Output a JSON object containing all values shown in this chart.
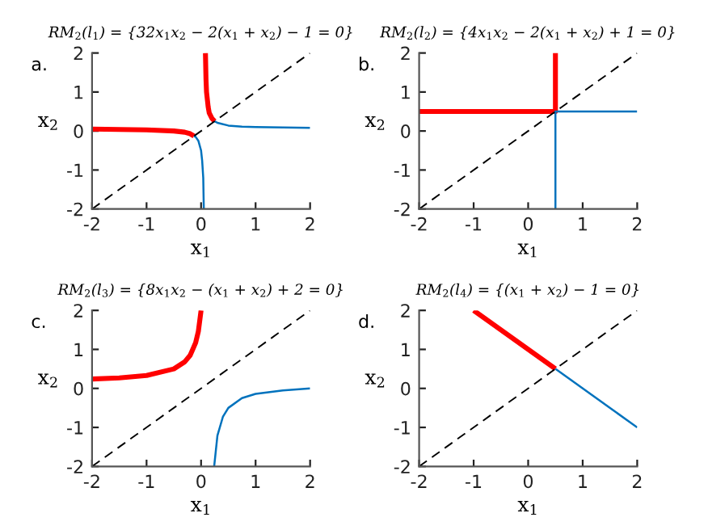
{
  "chart_data": [
    {
      "type": "line",
      "title": "RM$_{2}$(l$_{1}$) = {32x$_{1}$x$_{2}$ − 2(x$_{1}$ + x$_{2}$) − 1 = 0}",
      "xlabel": "x$_{1}$",
      "ylabel": "x$_{2}$",
      "annotations": [
        "a."
      ],
      "xlim": [
        -2,
        2
      ],
      "ylim": [
        -2,
        2
      ],
      "xticks": [
        -2,
        -1,
        0,
        1,
        2
      ],
      "yticks": [
        -2,
        -1,
        0,
        1,
        2
      ],
      "marker": "none",
      "series": [
        {
          "color": "#ff0000",
          "line_style": "solid",
          "x": [
            -2,
            -1.5,
            -1,
            -0.5,
            -0.3,
            -0.2,
            -0.13,
            null,
            0.08,
            0.09,
            0.1,
            0.13,
            0.15,
            0.2,
            0.25
          ],
          "values": [
            0.05,
            0.04,
            0.03,
            0,
            -0.03,
            -0.07,
            -0.13,
            null,
            2,
            1.34,
            1,
            0.62,
            0.46,
            0.32,
            0.25
          ]
        },
        {
          "color": "#0072bd",
          "line_style": "solid",
          "x": [
            -0.13,
            -0.1,
            -0.05,
            0,
            0.02,
            0.04,
            0.05,
            null,
            0.25,
            0.3,
            0.5,
            0.75,
            1,
            1.5,
            2
          ],
          "values": [
            -0.13,
            -0.15,
            -0.25,
            -0.5,
            -0.76,
            -1.2,
            -2,
            null,
            0.25,
            0.21,
            0.14,
            0.11,
            0.1,
            0.09,
            0.08
          ]
        },
        {
          "color": "#000000",
          "line_style": "dashed",
          "x": [
            -2,
            2
          ],
          "values": [
            -2,
            2
          ]
        }
      ]
    },
    {
      "type": "line",
      "title": "RM$_{2}$(l$_{2}$) = {4x$_{1}$x$_{2}$ − 2(x$_{1}$ + x$_{2}$) + 1 = 0}",
      "xlabel": "x$_{1}$",
      "ylabel": "x$_{2}$",
      "annotations": [
        "b."
      ],
      "xlim": [
        -2,
        2
      ],
      "ylim": [
        -2,
        2
      ],
      "xticks": [
        -2,
        -1,
        0,
        1,
        2
      ],
      "yticks": [
        -2,
        -1,
        0,
        1,
        2
      ],
      "marker": "none",
      "series": [
        {
          "color": "#ff0000",
          "line_style": "solid",
          "x": [
            -2,
            0.5,
            0.5
          ],
          "values": [
            0.5,
            0.5,
            2
          ]
        },
        {
          "color": "#0072bd",
          "line_style": "solid",
          "x": [
            2,
            0.5,
            0.5
          ],
          "values": [
            0.5,
            0.5,
            -2
          ]
        },
        {
          "color": "#000000",
          "line_style": "dashed",
          "x": [
            -2,
            2
          ],
          "values": [
            -2,
            2
          ]
        }
      ]
    },
    {
      "type": "line",
      "title": "RM$_{2}$(l$_{3}$) = {8x$_{1}$x$_{2}$ − (x$_{1}$ + x$_{2}$) + 2 = 0}",
      "xlabel": "x$_{1}$",
      "ylabel": "x$_{2}$",
      "annotations": [
        "c."
      ],
      "xlim": [
        -2,
        2
      ],
      "ylim": [
        -2,
        2
      ],
      "xticks": [
        -2,
        -1,
        0,
        1,
        2
      ],
      "yticks": [
        -2,
        -1,
        0,
        1,
        2
      ],
      "marker": "none",
      "series": [
        {
          "color": "#ff0000",
          "line_style": "solid",
          "x": [
            -2,
            -1.5,
            -1,
            -0.5,
            -0.3,
            -0.2,
            -0.1,
            -0.05,
            0
          ],
          "values": [
            0.24,
            0.27,
            0.33,
            0.5,
            0.68,
            0.85,
            1.17,
            1.46,
            2
          ]
        },
        {
          "color": "#0072bd",
          "line_style": "solid",
          "x": [
            0.24,
            0.3,
            0.4,
            0.5,
            0.75,
            1,
            1.5,
            2
          ],
          "values": [
            -2,
            -1.21,
            -0.73,
            -0.5,
            -0.25,
            -0.14,
            -0.05,
            0
          ]
        },
        {
          "color": "#000000",
          "line_style": "dashed",
          "x": [
            -2,
            2
          ],
          "values": [
            -2,
            2
          ]
        }
      ]
    },
    {
      "type": "line",
      "title": "RM$_{2}$(l$_{4}$) = {(x$_{1}$ + x$_{2}$) − 1 = 0}",
      "xlabel": "x$_{1}$",
      "ylabel": "x$_{2}$",
      "annotations": [
        "d."
      ],
      "xlim": [
        -2,
        2
      ],
      "ylim": [
        -2,
        2
      ],
      "xticks": [
        -2,
        -1,
        0,
        1,
        2
      ],
      "yticks": [
        -2,
        -1,
        0,
        1,
        2
      ],
      "marker": "none",
      "series": [
        {
          "color": "#ff0000",
          "line_style": "solid",
          "x": [
            -1,
            0.5
          ],
          "values": [
            2,
            0.5
          ]
        },
        {
          "color": "#0072bd",
          "line_style": "solid",
          "x": [
            0.5,
            2
          ],
          "values": [
            0.5,
            -1
          ]
        },
        {
          "color": "#000000",
          "line_style": "dashed",
          "x": [
            -2,
            2
          ],
          "values": [
            -2,
            2
          ]
        }
      ]
    }
  ]
}
